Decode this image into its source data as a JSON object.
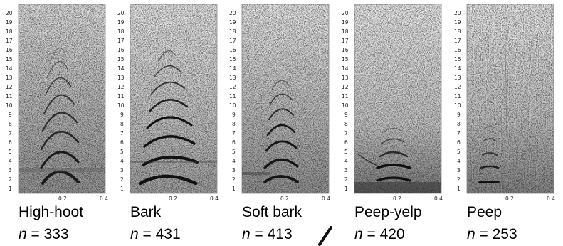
{
  "y_ticks": [
    "1",
    "2",
    "3",
    "4",
    "5",
    "6",
    "7",
    "8",
    "9",
    "10",
    "11",
    "12",
    "13",
    "14",
    "15",
    "16",
    "17",
    "18",
    "19",
    "20"
  ],
  "x_ticks": [
    "0.2",
    "0.4"
  ],
  "panels": [
    {
      "name": "High-hoot",
      "n_prefix": "n",
      "n_value": "= 333",
      "harmonics": 6
    },
    {
      "name": "Bark",
      "n_prefix": "n",
      "n_value": "= 431",
      "harmonics": 7
    },
    {
      "name": "Soft bark",
      "n_prefix": "n",
      "n_value": "= 413",
      "harmonics": 6
    },
    {
      "name": "Peep-yelp",
      "n_prefix": "n",
      "n_value": "= 420",
      "harmonics": 3
    },
    {
      "name": "Peep",
      "n_prefix": "n",
      "n_value": "= 253",
      "harmonics": 4
    }
  ]
}
